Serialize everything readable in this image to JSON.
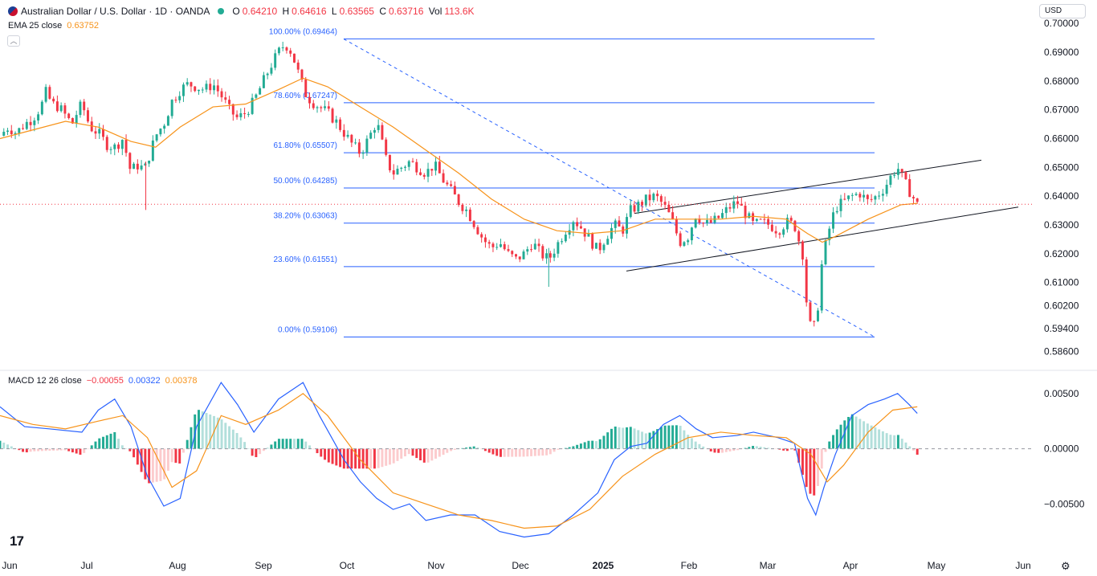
{
  "header": {
    "symbol": "Australian Dollar / U.S. Dollar · 1D · OANDA",
    "open_label": "O",
    "open": "0.64210",
    "high_label": "H",
    "high": "0.64616",
    "low_label": "L",
    "low": "0.63565",
    "close_label": "C",
    "close": "0.63716",
    "vol_label": "Vol",
    "volume": "113.6K"
  },
  "ema": {
    "label": "EMA 25 close",
    "value": "0.63752",
    "color": "#f7931a"
  },
  "currency": "USD",
  "collapse_icon": "chevron-up-icon",
  "colors": {
    "up": "#22ab94",
    "down": "#f23645",
    "macd": "#2962ff",
    "signal": "#f7931a",
    "fib": "#2962ff",
    "channel": "#131722",
    "hist_up": "#22ab94",
    "hist_up_weak": "#b2dfdb",
    "hist_down": "#f23645",
    "hist_down_weak": "#fccbcd"
  },
  "macd": {
    "label": "MACD 12 26 close",
    "histogram": "−0.00055",
    "macd_value": "0.00322",
    "signal_value": "0.00378"
  },
  "chart_data": {
    "type": "candlestick",
    "x_labels": [
      "Jun",
      "Jul",
      "Aug",
      "Sep",
      "Oct",
      "Nov",
      "Dec",
      "2025",
      "Feb",
      "Mar",
      "Apr",
      "May",
      "Jun"
    ],
    "price_ticks": [
      "0.70000",
      "0.69000",
      "0.68000",
      "0.67000",
      "0.66000",
      "0.65000",
      "0.64000",
      "0.63000",
      "0.62000",
      "0.61000",
      "0.60200",
      "0.59400",
      "0.58600"
    ],
    "price_tick_values": [
      0.7,
      0.69,
      0.68,
      0.67,
      0.66,
      0.65,
      0.64,
      0.63,
      0.62,
      0.61,
      0.602,
      0.594,
      0.586
    ],
    "macd_ticks": [
      "0.00500",
      "0.00000",
      "−0.00500"
    ],
    "macd_tick_values": [
      0.005,
      0,
      -0.005
    ],
    "ylim_price": [
      0.582,
      0.702
    ],
    "ylim_macd": [
      -0.0068,
      0.0063
    ],
    "price_path": [
      [
        0,
        0.661
      ],
      [
        0.5,
        0.664
      ],
      [
        1,
        0.662
      ],
      [
        1.5,
        0.665
      ],
      [
        2,
        0.667
      ],
      [
        2.5,
        0.671
      ],
      [
        2.8,
        0.676
      ],
      [
        3.2,
        0.672
      ],
      [
        3.6,
        0.671
      ],
      [
        4,
        0.668
      ],
      [
        4.4,
        0.665
      ],
      [
        4.7,
        0.669
      ],
      [
        5,
        0.672
      ],
      [
        5.5,
        0.664
      ],
      [
        6,
        0.662
      ],
      [
        6.5,
        0.658
      ],
      [
        7,
        0.657
      ],
      [
        7.5,
        0.66
      ],
      [
        8,
        0.648
      ],
      [
        8.3,
        0.651
      ],
      [
        8.6,
        0.65
      ],
      [
        8.9,
        0.65
      ],
      [
        9.2,
        0.656
      ],
      [
        9.6,
        0.662
      ],
      [
        10,
        0.665
      ],
      [
        10.5,
        0.673
      ],
      [
        11,
        0.677
      ],
      [
        11.5,
        0.679
      ],
      [
        12,
        0.678
      ],
      [
        12.5,
        0.677
      ],
      [
        13,
        0.679
      ],
      [
        13.5,
        0.675
      ],
      [
        14,
        0.67
      ],
      [
        14.5,
        0.667
      ],
      [
        15,
        0.669
      ],
      [
        15.5,
        0.673
      ],
      [
        16,
        0.679
      ],
      [
        16.5,
        0.685
      ],
      [
        17,
        0.69
      ],
      [
        17.4,
        0.693
      ],
      [
        17.8,
        0.69
      ],
      [
        18.2,
        0.683
      ],
      [
        18.6,
        0.676
      ],
      [
        19,
        0.673
      ],
      [
        19.5,
        0.671
      ],
      [
        20,
        0.669
      ],
      [
        20.5,
        0.666
      ],
      [
        21,
        0.662
      ],
      [
        21.5,
        0.658
      ],
      [
        22,
        0.655
      ],
      [
        22.5,
        0.66
      ],
      [
        23,
        0.666
      ],
      [
        23.3,
        0.659
      ],
      [
        23.6,
        0.652
      ],
      [
        24,
        0.648
      ],
      [
        24.5,
        0.65
      ],
      [
        25,
        0.652
      ],
      [
        25.5,
        0.65
      ],
      [
        26,
        0.648
      ],
      [
        26.5,
        0.651
      ],
      [
        27,
        0.646
      ],
      [
        27.5,
        0.642
      ],
      [
        28,
        0.638
      ],
      [
        28.5,
        0.635
      ],
      [
        29,
        0.63
      ],
      [
        29.5,
        0.625
      ],
      [
        30,
        0.622
      ],
      [
        30.5,
        0.624
      ],
      [
        31,
        0.62
      ],
      [
        31.5,
        0.618
      ],
      [
        32,
        0.62
      ],
      [
        32.5,
        0.624
      ],
      [
        33,
        0.62
      ],
      [
        33.5,
        0.618
      ],
      [
        34,
        0.623
      ],
      [
        34.5,
        0.628
      ],
      [
        35,
        0.632
      ],
      [
        35.5,
        0.629
      ],
      [
        36,
        0.625
      ],
      [
        36.5,
        0.621
      ],
      [
        37,
        0.626
      ],
      [
        37.5,
        0.63
      ],
      [
        38,
        0.628
      ],
      [
        38.5,
        0.635
      ],
      [
        39,
        0.637
      ],
      [
        39.5,
        0.639
      ],
      [
        40,
        0.64
      ],
      [
        40.5,
        0.637
      ],
      [
        41,
        0.632
      ],
      [
        41.5,
        0.624
      ],
      [
        42,
        0.626
      ],
      [
        42.5,
        0.634
      ],
      [
        43,
        0.63
      ],
      [
        43.5,
        0.631
      ],
      [
        44,
        0.633
      ],
      [
        44.5,
        0.636
      ],
      [
        45,
        0.638
      ],
      [
        45.5,
        0.634
      ],
      [
        46,
        0.63
      ],
      [
        46.5,
        0.631
      ],
      [
        47,
        0.63
      ],
      [
        47.5,
        0.628
      ],
      [
        48,
        0.631
      ],
      [
        48.5,
        0.63
      ],
      [
        49,
        0.62
      ],
      [
        49.3,
        0.599
      ],
      [
        49.6,
        0.592
      ],
      [
        49.9,
        0.6
      ],
      [
        50.2,
        0.618
      ],
      [
        50.6,
        0.628
      ],
      [
        51,
        0.636
      ],
      [
        51.5,
        0.638
      ],
      [
        52,
        0.64
      ],
      [
        52.5,
        0.641
      ],
      [
        53,
        0.638
      ],
      [
        53.5,
        0.64
      ],
      [
        54,
        0.643
      ],
      [
        54.5,
        0.648
      ],
      [
        54.8,
        0.65
      ],
      [
        55.2,
        0.645
      ],
      [
        55.6,
        0.641
      ],
      [
        56,
        0.637
      ]
    ],
    "price_x_range": [
      0,
      63
    ],
    "ema25": {
      "name": "EMA 25 close",
      "path": [
        [
          0,
          0.66
        ],
        [
          2,
          0.663
        ],
        [
          4,
          0.666
        ],
        [
          6,
          0.664
        ],
        [
          8,
          0.659
        ],
        [
          9.5,
          0.657
        ],
        [
          11,
          0.664
        ],
        [
          13,
          0.671
        ],
        [
          15,
          0.672
        ],
        [
          17,
          0.677
        ],
        [
          18.5,
          0.681
        ],
        [
          20,
          0.678
        ],
        [
          22,
          0.671
        ],
        [
          24,
          0.664
        ],
        [
          26,
          0.656
        ],
        [
          28,
          0.648
        ],
        [
          30,
          0.639
        ],
        [
          32,
          0.632
        ],
        [
          34,
          0.628
        ],
        [
          36,
          0.627
        ],
        [
          38,
          0.628
        ],
        [
          40,
          0.632
        ],
        [
          42,
          0.632
        ],
        [
          44,
          0.632
        ],
        [
          46,
          0.633
        ],
        [
          48,
          0.632
        ],
        [
          49.3,
          0.627
        ],
        [
          50.2,
          0.624
        ],
        [
          51,
          0.626
        ],
        [
          53,
          0.632
        ],
        [
          55,
          0.637
        ],
        [
          56,
          0.6375
        ]
      ]
    },
    "fibonacci": [
      {
        "label": "100.00% (0.69464)",
        "value": 0.69464
      },
      {
        "label": "78.60% (0.67247)",
        "value": 0.67247
      },
      {
        "label": "61.80% (0.65507)",
        "value": 0.65507
      },
      {
        "label": "50.00% (0.64285)",
        "value": 0.64285
      },
      {
        "label": "38.20% (0.63063)",
        "value": 0.63063
      },
      {
        "label": "23.60% (0.61551)",
        "value": 0.61551
      },
      {
        "label": "0.00% (0.59106)",
        "value": 0.59106
      }
    ],
    "fib_x_range": [
      19.2,
      51.8
    ],
    "fib_diagonal": [
      [
        19.2,
        0.6946
      ],
      [
        49.6,
        0.5911
      ]
    ],
    "channel_upper": [
      [
        36,
        0.634
      ],
      [
        55.7,
        0.6525
      ]
    ],
    "channel_lower": [
      [
        35.5,
        0.614
      ],
      [
        57.5,
        0.6365
      ]
    ],
    "current_price_line": 0.6372,
    "macd_line": {
      "name": "MACD",
      "path": [
        [
          0,
          0.0038
        ],
        [
          1.5,
          0.002
        ],
        [
          3,
          0.0018
        ],
        [
          5,
          0.0015
        ],
        [
          6,
          0.0035
        ],
        [
          7,
          0.0045
        ],
        [
          8,
          0.002
        ],
        [
          9,
          -0.0025
        ],
        [
          10,
          -0.0052
        ],
        [
          11,
          -0.0045
        ],
        [
          12,
          0.002
        ],
        [
          13.5,
          0.006
        ],
        [
          14.5,
          0.004
        ],
        [
          15.5,
          0.0015
        ],
        [
          17,
          0.0045
        ],
        [
          18.5,
          0.006
        ],
        [
          19.5,
          0.003
        ],
        [
          21,
          -0.001
        ],
        [
          22,
          -0.003
        ],
        [
          23,
          -0.0045
        ],
        [
          24,
          -0.0055
        ],
        [
          25,
          -0.005
        ],
        [
          26,
          -0.0065
        ],
        [
          27.5,
          -0.006
        ],
        [
          29,
          -0.006
        ],
        [
          30.5,
          -0.0075
        ],
        [
          32,
          -0.008
        ],
        [
          33.5,
          -0.0077
        ],
        [
          35,
          -0.006
        ],
        [
          36.5,
          -0.004
        ],
        [
          37.5,
          -0.001
        ],
        [
          38.5,
          0.0002
        ],
        [
          39.5,
          0.0005
        ],
        [
          40.5,
          0.0022
        ],
        [
          41.5,
          0.003
        ],
        [
          42.5,
          0.0018
        ],
        [
          43.5,
          0.001
        ],
        [
          45,
          0.0012
        ],
        [
          46,
          0.0015
        ],
        [
          47.5,
          0.001
        ],
        [
          48.5,
          0.0005
        ],
        [
          49.3,
          -0.0045
        ],
        [
          49.8,
          -0.006
        ],
        [
          50.3,
          -0.0035
        ],
        [
          51,
          -0.0005
        ],
        [
          52,
          0.003
        ],
        [
          53,
          0.004
        ],
        [
          54,
          0.0045
        ],
        [
          54.8,
          0.005
        ],
        [
          55.5,
          0.004
        ],
        [
          56,
          0.0032
        ]
      ]
    },
    "signal_line": {
      "name": "Signal",
      "path": [
        [
          0,
          0.003
        ],
        [
          2,
          0.0022
        ],
        [
          4,
          0.0018
        ],
        [
          6,
          0.0025
        ],
        [
          7.5,
          0.003
        ],
        [
          9,
          0.001
        ],
        [
          10.5,
          -0.0035
        ],
        [
          12,
          -0.002
        ],
        [
          13.5,
          0.003
        ],
        [
          15,
          0.0022
        ],
        [
          17,
          0.0035
        ],
        [
          18.5,
          0.005
        ],
        [
          20,
          0.003
        ],
        [
          22,
          -0.001
        ],
        [
          24,
          -0.004
        ],
        [
          26,
          -0.005
        ],
        [
          28,
          -0.006
        ],
        [
          30,
          -0.0065
        ],
        [
          32,
          -0.0072
        ],
        [
          34,
          -0.007
        ],
        [
          36,
          -0.0055
        ],
        [
          38,
          -0.0025
        ],
        [
          40,
          -0.0005
        ],
        [
          42,
          0.001
        ],
        [
          44,
          0.0015
        ],
        [
          46,
          0.0012
        ],
        [
          48,
          0.001
        ],
        [
          49.5,
          -0.0005
        ],
        [
          50.5,
          -0.003
        ],
        [
          51.5,
          -0.0015
        ],
        [
          53,
          0.0015
        ],
        [
          54.5,
          0.0035
        ],
        [
          56,
          0.0038
        ]
      ]
    }
  }
}
